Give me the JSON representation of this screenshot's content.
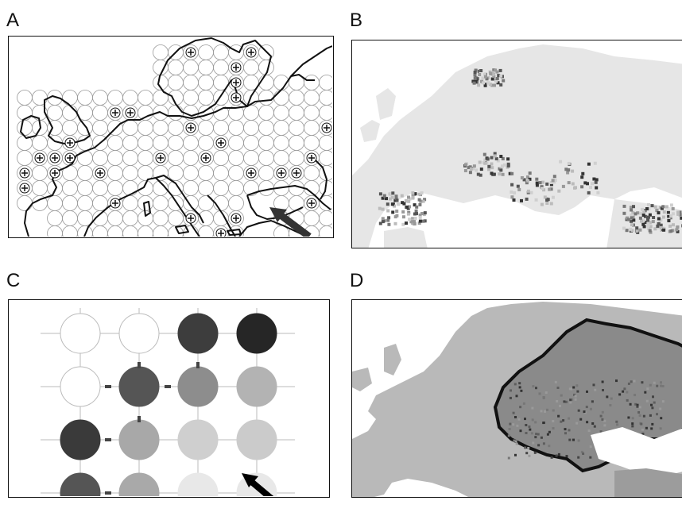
{
  "panels": {
    "a": {
      "label": "A"
    },
    "b": {
      "label": "B"
    },
    "c": {
      "label": "C"
    },
    "d": {
      "label": "D"
    }
  },
  "colors": {
    "land_grey": "#b8b8b8",
    "light_grey": "#e6e6e6",
    "dark": "#222222",
    "coast": "#111111"
  },
  "icons": {
    "arrow": "diagonal-arrow-icon",
    "cross": "plus-cross-icon"
  },
  "grid_c": {
    "rows": 4,
    "cols": 4,
    "shades": [
      [
        "#ffffff",
        "#ffffff",
        "#3d3d3d",
        "#262626"
      ],
      [
        "#ffffff",
        "#555555",
        "#8d8d8d",
        "#b3b3b3"
      ],
      [
        "#3a3a3a",
        "#a8a8a8",
        "#cfcfcf",
        "#cbcbcb"
      ],
      [
        "#555555",
        "#a9a9a9",
        "#e8e8e8",
        "#e8e8e8"
      ]
    ]
  }
}
